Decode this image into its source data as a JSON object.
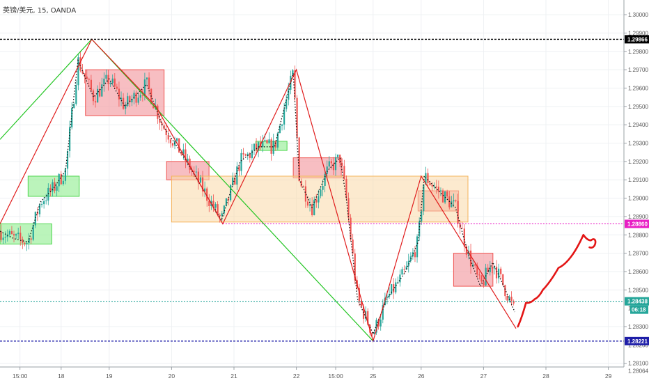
{
  "symbol_title": "英镑/美元, 15, OANDA",
  "chart_data": {
    "type": "line",
    "title": "英镑/美元, 15, OANDA",
    "ylim": [
      1.2808,
      1.3008
    ],
    "y_ticks": [
      1.3,
      1.299,
      1.298,
      1.297,
      1.296,
      1.295,
      1.294,
      1.293,
      1.292,
      1.291,
      1.29,
      1.289,
      1.288,
      1.287,
      1.286,
      1.285,
      1.283,
      1.281
    ],
    "y_tick_labels": [
      "1.30000",
      "1.29900",
      "1.29800",
      "1.29700",
      "1.29600",
      "1.29500",
      "1.29400",
      "1.29300",
      "1.29200",
      "1.29100",
      "1.29000",
      "1.28900",
      "1.28800",
      "1.28700",
      "1.28600",
      "1.28500",
      "1.28300",
      "1.28100"
    ],
    "x_ticks": [
      {
        "t": -0.33,
        "label": "15:00"
      },
      {
        "t": 0.33,
        "label": "18"
      },
      {
        "t": 1.1,
        "label": "19"
      },
      {
        "t": 2.1,
        "label": "20"
      },
      {
        "t": 3.1,
        "label": "21"
      },
      {
        "t": 4.1,
        "label": "22"
      },
      {
        "t": 4.73,
        "label": "15:00"
      },
      {
        "t": 5.33,
        "label": "25"
      },
      {
        "t": 6.1,
        "label": "26"
      },
      {
        "t": 7.1,
        "label": "27"
      },
      {
        "t": 8.1,
        "label": "28"
      },
      {
        "t": 9.1,
        "label": "29"
      }
    ],
    "price_path": [
      [
        -0.65,
        1.2882
      ],
      [
        -0.43,
        1.2878
      ],
      [
        -0.2,
        1.2876
      ],
      [
        0.0,
        1.2898
      ],
      [
        0.2,
        1.2905
      ],
      [
        0.4,
        1.2915
      ],
      [
        0.6,
        1.2975
      ],
      [
        0.85,
        1.2955
      ],
      [
        1.1,
        1.2965
      ],
      [
        1.35,
        1.295
      ],
      [
        1.7,
        1.2962
      ],
      [
        1.95,
        1.294
      ],
      [
        2.25,
        1.2925
      ],
      [
        2.6,
        1.2905
      ],
      [
        2.9,
        1.2888
      ],
      [
        3.2,
        1.292
      ],
      [
        3.5,
        1.2928
      ],
      [
        3.75,
        1.2928
      ],
      [
        3.95,
        1.2955
      ],
      [
        4.05,
        1.2968
      ],
      [
        4.15,
        1.291
      ],
      [
        4.35,
        1.2895
      ],
      [
        4.6,
        1.2915
      ],
      [
        4.8,
        1.2922
      ],
      [
        4.9,
        1.29
      ],
      [
        5.08,
        1.2845
      ],
      [
        5.33,
        1.2826
      ],
      [
        5.55,
        1.2845
      ],
      [
        5.85,
        1.286
      ],
      [
        6.05,
        1.2876
      ],
      [
        6.15,
        1.2912
      ],
      [
        6.35,
        1.2905
      ],
      [
        6.65,
        1.2895
      ],
      [
        6.85,
        1.287
      ],
      [
        7.05,
        1.2852
      ],
      [
        7.25,
        1.2865
      ],
      [
        7.45,
        1.285
      ],
      [
        7.6,
        1.2838
      ]
    ],
    "zigzag_red": [
      [
        -0.65,
        1.2886
      ],
      [
        0.82,
        1.29866
      ],
      [
        1.85,
        1.295
      ],
      [
        2.92,
        1.2886
      ],
      [
        4.1,
        1.297
      ],
      [
        5.33,
        1.28221
      ],
      [
        6.1,
        1.2912
      ],
      [
        7.62,
        1.2829
      ]
    ],
    "zigzag_green": [
      [
        -0.65,
        1.2932
      ],
      [
        0.82,
        1.29866
      ],
      [
        5.33,
        1.28221
      ]
    ],
    "projection_path": [
      [
        7.65,
        1.283
      ],
      [
        7.78,
        1.2843
      ],
      [
        7.92,
        1.2845
      ],
      [
        8.05,
        1.285
      ],
      [
        8.3,
        1.2862
      ],
      [
        8.5,
        1.2868
      ],
      [
        8.7,
        1.288
      ],
      [
        8.82,
        1.2877
      ]
    ],
    "zones": [
      {
        "kind": "supply",
        "t0": 0.72,
        "t1": 1.98,
        "p0": 1.2945,
        "p1": 1.297
      },
      {
        "kind": "supply",
        "t0": 2.02,
        "t1": 2.7,
        "p0": 1.291,
        "p1": 1.292
      },
      {
        "kind": "supply",
        "t0": 4.05,
        "t1": 4.82,
        "p0": 1.2911,
        "p1": 1.2922
      },
      {
        "kind": "supply",
        "t0": 6.05,
        "t1": 6.7,
        "p0": 1.2893,
        "p1": 1.2904
      },
      {
        "kind": "supply",
        "t0": 6.62,
        "t1": 7.25,
        "p0": 1.2852,
        "p1": 1.287
      },
      {
        "kind": "demand",
        "t0": -0.65,
        "t1": 0.18,
        "p0": 1.2875,
        "p1": 1.2886
      },
      {
        "kind": "demand",
        "t0": -0.2,
        "t1": 0.62,
        "p0": 1.2901,
        "p1": 1.2912
      },
      {
        "kind": "demand",
        "t0": 3.45,
        "t1": 3.95,
        "p0": 1.2926,
        "p1": 1.2931
      },
      {
        "kind": "range",
        "t0": 2.1,
        "t1": 6.85,
        "p0": 1.2887,
        "p1": 1.2912
      }
    ],
    "h_lines": [
      {
        "price": 1.29866,
        "label": "1.29866",
        "color": "#000000",
        "style": "dashed"
      },
      {
        "price": 1.2886,
        "label": "1.28860",
        "color": "#e91ec5",
        "style": "dotted",
        "t_start": 2.92
      },
      {
        "price": 1.28438,
        "label": "1.28438",
        "color": "#26a69a",
        "style": "dotted"
      },
      {
        "price": 1.28221,
        "label": "1.28221",
        "color": "#1e1ea8",
        "style": "dashed"
      }
    ],
    "countdown_label": "06:18",
    "partial_labels": [
      {
        "price": 1.284,
        "label": "1."
      },
      {
        "price": 1.282,
        "label": "1.28200"
      },
      {
        "price": 1.2806,
        "label": "1.28064"
      }
    ],
    "colors": {
      "up": "#26a69a",
      "down": "#ef5350",
      "zigzag_red": "#e01b1b",
      "zigzag_green": "#22c522",
      "supply_fill": "#f4a3a8",
      "supply_stroke": "#ef5350",
      "demand_fill": "#9ef09e",
      "demand_stroke": "#4cd64c",
      "range_fill": "#f9d9a8",
      "range_stroke": "#f5b35a",
      "projection": "#e31515",
      "grid": "#eef0f3",
      "axis": "#9aa0a6"
    }
  }
}
